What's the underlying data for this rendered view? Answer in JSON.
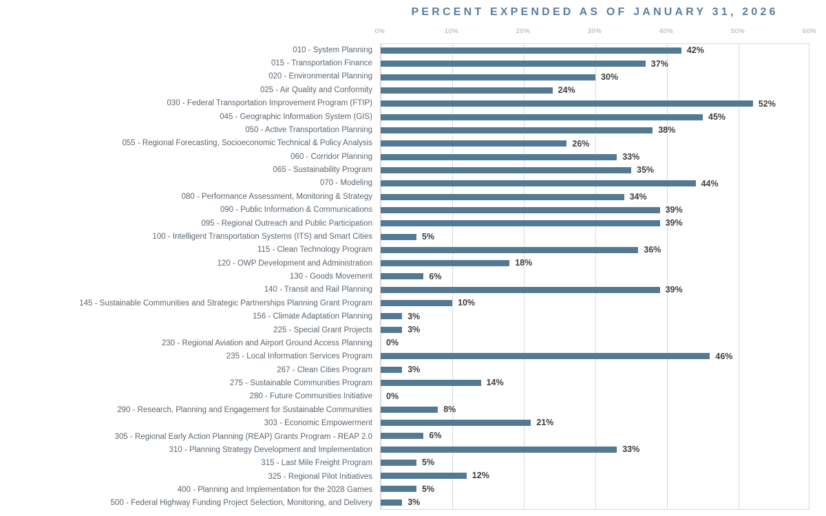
{
  "colors": {
    "bar": "#547a93",
    "title": "#5b7e9d",
    "category_label": "#5b6670",
    "value_label": "#3d3d3d",
    "tick_label": "#a6a6a6",
    "gridline": "#d9d9d9"
  },
  "chart_data": {
    "type": "bar",
    "orientation": "horizontal",
    "title": "PERCENT EXPENDED AS OF JANUARY 31, 2026",
    "xlabel": "",
    "ylabel": "",
    "xlim": [
      0,
      60
    ],
    "x_tick_labels": [
      "0%",
      "10%",
      "20%",
      "30%",
      "40%",
      "50%",
      "60%"
    ],
    "grid": true,
    "axis_position": "top",
    "legend": false,
    "categories": [
      "010 - System Planning",
      "015 - Transportation Finance",
      "020 - Environmental Planning",
      "025 - Air Quality and Conformity",
      "030 - Federal Transportation Improvement Program (FTIP)",
      "045 - Geographic Information System (GIS)",
      "050 - Active Transportation Planning",
      "055 - Regional Forecasting, Socioeconomic Technical & Policy Analysis",
      "060 - Corridor Planning",
      "065 - Sustainability Program",
      "070 - Modeling",
      "080 - Performance Assessment, Monitoring & Strategy",
      "090 - Public Information & Communications",
      "095 - Regional Outreach and Public Participation",
      "100 - Intelligent Transportation Systems (ITS) and Smart Cities",
      "115 - Clean Technology Program",
      "120 - OWP Development and Administration",
      "130 - Goods Movement",
      "140 - Transit and Rail Planning",
      "145 - Sustainable Communities and Strategic Partnerships Planning Grant Program",
      "156 - Climate Adaptation Planning",
      "225 - Special Grant Projects",
      "230 - Regional Aviation and Airport Ground Access Planning",
      "235 - Local Information Services Program",
      "267 - Clean Cities Program",
      "275 - Sustainable Communities Program",
      "280 - Future Communities Initiative",
      "290 - Research, Planning and Engagement for Sustainable Communities",
      "303 - Economic Empowerment",
      "305 - Regional Early Action Planning (REAP) Grants Program - REAP 2.0",
      "310 - Planning Strategy Development and Implementation",
      "315 - Last Mile Freight Program",
      "325 - Regional Pilot Initiatives",
      "400 - Planning and Implementation for the 2028 Games",
      "500 - Federal Highway Funding Project Selection, Monitoring, and Delivery"
    ],
    "values": [
      42,
      37,
      30,
      24,
      52,
      45,
      38,
      26,
      33,
      35,
      44,
      34,
      39,
      39,
      5,
      36,
      18,
      6,
      39,
      10,
      3,
      3,
      0,
      46,
      3,
      14,
      0,
      8,
      21,
      6,
      33,
      5,
      12,
      5,
      3
    ],
    "value_labels": [
      "42%",
      "37%",
      "30%",
      "24%",
      "52%",
      "45%",
      "38%",
      "26%",
      "33%",
      "35%",
      "44%",
      "34%",
      "39%",
      "39%",
      "5%",
      "36%",
      "18%",
      "6%",
      "39%",
      "10%",
      "3%",
      "3%",
      "0%",
      "46%",
      "3%",
      "14%",
      "0%",
      "8%",
      "21%",
      "6%",
      "33%",
      "5%",
      "12%",
      "5%",
      "3%"
    ]
  }
}
